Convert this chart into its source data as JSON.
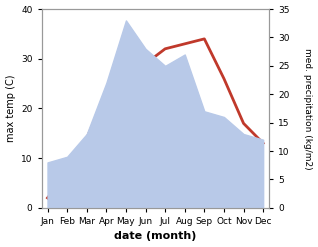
{
  "months": [
    "Jan",
    "Feb",
    "Mar",
    "Apr",
    "May",
    "Jun",
    "Jul",
    "Aug",
    "Sep",
    "Oct",
    "Nov",
    "Dec"
  ],
  "temperature": [
    2,
    7,
    14,
    23,
    26,
    29,
    32,
    33,
    34,
    26,
    17,
    13
  ],
  "precipitation": [
    8,
    9,
    13,
    22,
    33,
    28,
    25,
    27,
    17,
    16,
    13,
    12
  ],
  "temp_color": "#c0392b",
  "precip_color": "#b8c9e8",
  "left_ylim": [
    0,
    40
  ],
  "right_ylim": [
    0,
    35
  ],
  "left_yticks": [
    0,
    10,
    20,
    30,
    40
  ],
  "right_yticks": [
    0,
    5,
    10,
    15,
    20,
    25,
    30,
    35
  ],
  "left_ylabel": "max temp (C)",
  "right_ylabel": "med. precipitation (kg/m2)",
  "xlabel": "date (month)",
  "bg_color": "#ffffff",
  "spine_color": "#999999",
  "temp_linewidth": 2.0
}
